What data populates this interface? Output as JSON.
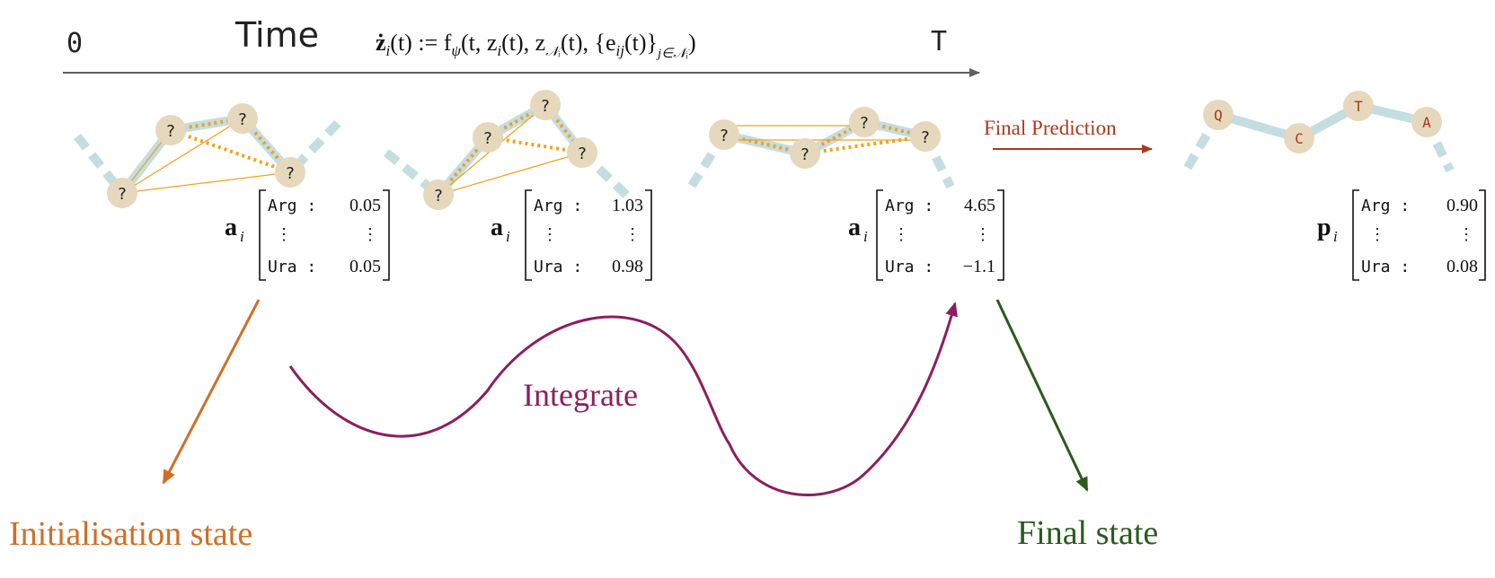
{
  "timeline": {
    "start_label": "0",
    "time_label": "Time",
    "end_label": "T",
    "equation_lhs": "ż",
    "equation_lhs_sub": "i",
    "equation_rhs": "(t) := f",
    "equation_f_sub": "ψ",
    "equation_args": "(t, z",
    "equation_zi_sub": "i",
    "equation_mid": "(t), z",
    "equation_zn_sub": "𝒩ᵢ",
    "equation_mid2": "(t), {e",
    "equation_e_sub": "ij",
    "equation_tail": "(t)}",
    "equation_tail_sub": "j∈𝒩ᵢ",
    "equation_close": ")"
  },
  "stages": [
    {
      "node_label": "?",
      "vector_symbol": "a",
      "vector_sub": "i",
      "rows": [
        {
          "key": "Arg :",
          "value": "0.05"
        },
        {
          "key": "⋮",
          "value": "⋮"
        },
        {
          "key": "Ura :",
          "value": "0.05"
        }
      ]
    },
    {
      "node_label": "?",
      "vector_symbol": "a",
      "vector_sub": "i",
      "rows": [
        {
          "key": "Arg :",
          "value": "1.03"
        },
        {
          "key": "⋮",
          "value": "⋮"
        },
        {
          "key": "Ura :",
          "value": "0.98"
        }
      ]
    },
    {
      "node_label": "?",
      "vector_symbol": "a",
      "vector_sub": "i",
      "rows": [
        {
          "key": "Arg :",
          "value": "4.65"
        },
        {
          "key": "⋮",
          "value": "⋮"
        },
        {
          "key": "Ura :",
          "value": "−1.1"
        }
      ]
    },
    {
      "vector_symbol": "p",
      "vector_sub": "i",
      "rows": [
        {
          "key": "Arg :",
          "value": "0.90"
        },
        {
          "key": "⋮",
          "value": "⋮"
        },
        {
          "key": "Ura :",
          "value": "0.08"
        }
      ]
    }
  ],
  "final_prediction_label": "Final Prediction",
  "predicted_residues": [
    "Q",
    "C",
    "T",
    "A"
  ],
  "labels": {
    "integrate": "Integrate",
    "initialisation_state": "Initialisation state",
    "final_state": "Final state"
  },
  "colors": {
    "timeline": "#5f5f5f",
    "node_fill": "#e6d8bd",
    "backbone": "#c4dde1",
    "edge": "#f0a21e",
    "prediction": "#b0361c",
    "init": "#cf6f27",
    "integrate": "#8b1f5f",
    "final": "#2a5a1c",
    "text": "#111111"
  }
}
